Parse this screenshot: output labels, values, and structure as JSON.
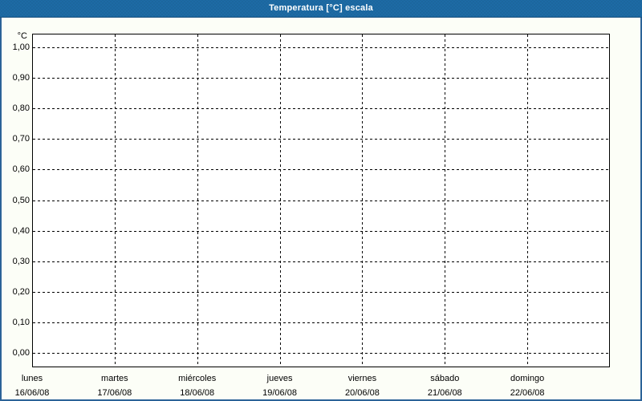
{
  "title_bar": {
    "title": "Temperatura [°C] escala"
  },
  "chart_data": {
    "type": "line",
    "title": "Temperatura [°C] escala",
    "xlabel": "",
    "ylabel": "°C",
    "ylim": [
      0.0,
      1.0
    ],
    "y_tick_step": 0.1,
    "y_ticks": [
      "1,00",
      "0,90",
      "0,80",
      "0,70",
      "0,60",
      "0,50",
      "0,40",
      "0,30",
      "0,20",
      "0,10",
      "0,00"
    ],
    "x_categories": [
      {
        "day": "lunes",
        "date": "16/06/08"
      },
      {
        "day": "martes",
        "date": "17/06/08"
      },
      {
        "day": "miércoles",
        "date": "18/06/08"
      },
      {
        "day": "jueves",
        "date": "19/06/08"
      },
      {
        "day": "viernes",
        "date": "20/06/08"
      },
      {
        "day": "sábado",
        "date": "21/06/08"
      },
      {
        "day": "domingo",
        "date": "22/06/08"
      }
    ],
    "series": [],
    "grid": "dashed",
    "legend": "none"
  },
  "colors": {
    "title_bar_bg": "#1d6ba5",
    "title_bar_border": "#17507f",
    "title_text": "#ffffff",
    "frame_border": "#2c6398",
    "canvas_bg": "#fcfef7",
    "plot_bg": "#ffffff",
    "grid_line": "#000000",
    "axis_text": "#000000"
  }
}
